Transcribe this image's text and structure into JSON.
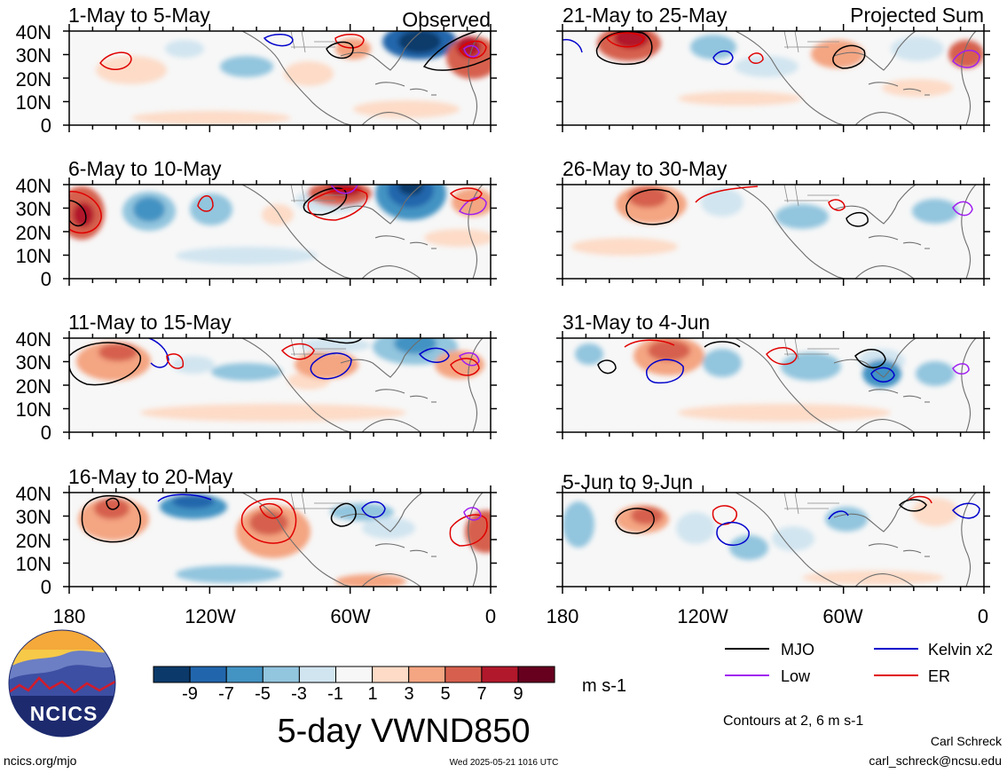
{
  "product_title": "5-day VWND850",
  "column_headers": {
    "left": "Observed",
    "right": "Projected Sum"
  },
  "panels": [
    {
      "period": "1-May to 5-May"
    },
    {
      "period": "6-May to 10-May"
    },
    {
      "period": "11-May to 15-May"
    },
    {
      "period": "16-May to 20-May"
    },
    {
      "period": "21-May to 25-May"
    },
    {
      "period": "26-May to 30-May"
    },
    {
      "period": "31-May to 4-Jun"
    },
    {
      "period": "5-Jun to 9-Jun"
    }
  ],
  "lat_ticks": [
    "40N",
    "30N",
    "20N",
    "10N",
    "0"
  ],
  "lon_ticks": [
    "180",
    "120W",
    "60W",
    "0"
  ],
  "colorbar": {
    "unit": "m s-1",
    "labels": [
      "-9",
      "-7",
      "-5",
      "-3",
      "-1",
      "1",
      "3",
      "5",
      "7",
      "9"
    ],
    "colors": [
      "#0b3a6a",
      "#2166ac",
      "#4393c3",
      "#92c5de",
      "#d1e5f0",
      "#f7f7f7",
      "#fddbc7",
      "#f4a582",
      "#d6604d",
      "#b2182b",
      "#67001f"
    ]
  },
  "legend": {
    "items": [
      {
        "label": "MJO",
        "color": "#000000"
      },
      {
        "label": "Kelvin x2",
        "color": "#0000cc"
      },
      {
        "label": "Low",
        "color": "#a020f0"
      },
      {
        "label": "ER",
        "color": "#e00000"
      }
    ],
    "note": "Contours at 2, 6 m s-1"
  },
  "logo": {
    "text": "NCICS"
  },
  "footer": {
    "left": "ncics.org/mjo",
    "timestamp": "Wed 2025-05-21 1016 UTC",
    "author": "Carl Schreck",
    "email": "carl_schreck@ncsu.edu"
  }
}
